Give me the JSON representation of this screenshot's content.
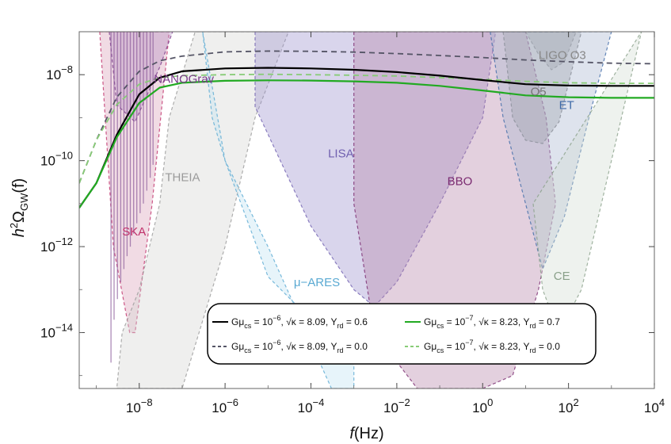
{
  "chart_data": {
    "type": "line",
    "xlabel": "f (Hz)",
    "ylabel": "h²Ω_GW(f)",
    "xscale": "log",
    "yscale": "log",
    "xlim": [
      4e-10,
      10000
    ],
    "ylim": [
      5e-16,
      1e-07
    ],
    "x_ticks": [
      {
        "value": 1e-08,
        "base": "10",
        "exp": "−8"
      },
      {
        "value": 1e-06,
        "base": "10",
        "exp": "−6"
      },
      {
        "value": 0.0001,
        "base": "10",
        "exp": "−4"
      },
      {
        "value": 0.01,
        "base": "10",
        "exp": "−2"
      },
      {
        "value": 1,
        "base": "10",
        "exp": "0"
      },
      {
        "value": 100,
        "base": "10",
        "exp": "2"
      },
      {
        "value": 10000,
        "base": "10",
        "exp": "4"
      }
    ],
    "y_ticks": [
      {
        "value": 1e-08,
        "base": "10",
        "exp": "−8"
      },
      {
        "value": 1e-10,
        "base": "10",
        "exp": "−10"
      },
      {
        "value": 1e-12,
        "base": "10",
        "exp": "−12"
      },
      {
        "value": 1e-14,
        "base": "10",
        "exp": "−14"
      }
    ],
    "regions": [
      {
        "label": "SKA",
        "color": "#c0306a",
        "fill": "#d9a0b8",
        "label_at": [
          4e-09,
          1.8e-12
        ],
        "boundary": [
          [
            1.2e-09,
            1e-07
          ],
          [
            2.5e-09,
            1e-12
          ],
          [
            6e-09,
            1e-14
          ],
          [
            8e-09,
            1e-14
          ],
          [
            2e-08,
            1e-11
          ],
          [
            5e-08,
            1e-07
          ]
        ]
      },
      {
        "label": "NANOGrav",
        "color": "#7a3a8a",
        "fill": "#b48cc0",
        "label_at": [
          2.2e-08,
          6.5e-09
        ],
        "boundary": [
          [
            2e-09,
            1e-07
          ],
          [
            3e-09,
            2e-09
          ],
          [
            8e-09,
            8e-10
          ],
          [
            3e-08,
            1.5e-08
          ],
          [
            6e-08,
            1e-07
          ]
        ]
      },
      {
        "label": "THEIA",
        "color": "#9a9a9a",
        "fill": "#d6d4d2",
        "label_at": [
          4e-08,
          3.3e-11
        ],
        "boundary": [
          [
            3e-09,
            5e-16
          ],
          [
            1e-07,
            5e-16
          ],
          [
            1e-06,
            1e-12
          ],
          [
            5e-06,
            1e-09
          ],
          [
            3e-05,
            1e-07
          ],
          [
            2e-07,
            1e-07
          ],
          [
            5e-08,
            1e-09
          ],
          [
            3e-08,
            1e-11
          ],
          [
            1e-08,
            1e-13
          ],
          [
            4e-09,
            1e-14
          ]
        ]
      },
      {
        "label": "μ−ARES",
        "color": "#59a9d2",
        "fill": "#bfe1f1",
        "label_at": [
          4e-05,
          1.2e-13
        ],
        "boundary": [
          [
            3e-07,
            1e-07
          ],
          [
            1e-06,
            1e-10
          ],
          [
            1e-05,
            2e-13
          ],
          [
            0.0001,
            2e-14
          ],
          [
            0.001,
            1e-14
          ],
          [
            0.001,
            5e-16
          ],
          [
            0.0003,
            5e-16
          ],
          [
            1e-05,
            1e-12
          ],
          [
            1e-06,
            1e-10
          ],
          [
            5e-07,
            1e-09
          ]
        ]
      },
      {
        "label": "LISA",
        "color": "#7060b0",
        "fill": "#9c91cc",
        "label_at": [
          0.00025,
          1.2e-10
        ],
        "boundary": [
          [
            5e-06,
            1e-07
          ],
          [
            5e-06,
            1.8e-09
          ],
          [
            0.0001,
            3e-12
          ],
          [
            0.001,
            1e-13
          ],
          [
            0.003,
            4e-14
          ],
          [
            0.01,
            1.5e-13
          ],
          [
            0.1,
            1e-11
          ],
          [
            1,
            1e-09
          ],
          [
            2,
            1e-07
          ]
        ]
      },
      {
        "label": "BBO",
        "color": "#7a2a70",
        "fill": "#b583a8",
        "label_at": [
          0.15,
          2.7e-11
        ],
        "boundary": [
          [
            0.001,
            1e-07
          ],
          [
            0.001,
            1e-11
          ],
          [
            0.003,
            1e-14
          ],
          [
            0.03,
            5e-16
          ],
          [
            1,
            5e-16
          ],
          [
            5,
            1e-15
          ],
          [
            20,
            1e-13
          ],
          [
            50,
            1e-11
          ],
          [
            30,
            1e-09
          ],
          [
            10,
            1e-07
          ]
        ]
      },
      {
        "label": "LIGO O3",
        "color": "#888888",
        "fill": "#a9a9a9",
        "label_at": [
          20,
          2.3e-08
        ],
        "boundary": [
          [
            10,
            1e-07
          ],
          [
            20,
            3e-08
          ],
          [
            40,
            1.3e-08
          ],
          [
            80,
            2e-08
          ],
          [
            150,
            1e-07
          ]
        ]
      },
      {
        "label": "O5",
        "color": "#777777",
        "fill": "#9c9c9c",
        "label_at": [
          13,
          3.3e-09
        ],
        "boundary": [
          [
            3,
            1e-07
          ],
          [
            5,
            1e-09
          ],
          [
            10,
            3e-10
          ],
          [
            25,
            2.5e-10
          ],
          [
            60,
            8e-10
          ],
          [
            200,
            1e-07
          ]
        ]
      },
      {
        "label": "ET",
        "color": "#3f6aa8",
        "fill": "#a8b6d0",
        "label_at": [
          60,
          1.6e-09
        ],
        "boundary": [
          [
            1.5,
            1e-07
          ],
          [
            3,
            1e-09
          ],
          [
            10,
            1e-11
          ],
          [
            25,
            3e-13
          ],
          [
            80,
            5e-12
          ],
          [
            300,
            1e-09
          ],
          [
            1000,
            1e-07
          ]
        ]
      },
      {
        "label": "CE",
        "color": "#8aa08a",
        "fill": "#d2dcd2",
        "label_at": [
          45,
          1.7e-13
        ],
        "boundary": [
          [
            15,
            1e-11
          ],
          [
            25,
            1e-13
          ],
          [
            60,
            1e-14
          ],
          [
            200,
            1e-13
          ],
          [
            1000,
            1e-10
          ],
          [
            5000,
            1e-07
          ]
        ]
      }
    ],
    "series": [
      {
        "name": "Gμ_cs = 10⁻⁶, √κ = 8.09, Y_rd = 0.6",
        "color": "#000000",
        "dash": false,
        "x": [
          4e-10,
          1e-09,
          3e-09,
          1e-08,
          3e-08,
          1e-07,
          1e-06,
          1e-05,
          0.0001,
          0.001,
          0.01,
          0.1,
          1,
          10,
          100,
          1000,
          10000
        ],
        "y": [
          8e-12,
          3e-11,
          4e-10,
          3.5e-09,
          8.5e-09,
          1.2e-08,
          1.4e-08,
          1.45e-08,
          1.4e-08,
          1.3e-08,
          1.15e-08,
          9.5e-09,
          7.5e-09,
          6e-09,
          5.6e-09,
          5.5e-09,
          5.5e-09
        ]
      },
      {
        "name": "Gμ_cs = 10⁻⁷, √κ = 8.23, Y_rd = 0.7",
        "color": "#22aa22",
        "dash": false,
        "x": [
          4e-10,
          1e-09,
          3e-09,
          1e-08,
          3e-08,
          1e-07,
          1e-06,
          1e-05,
          0.0001,
          0.001,
          0.01,
          0.1,
          1,
          10,
          100,
          1000,
          10000
        ],
        "y": [
          8e-12,
          3e-11,
          3.5e-10,
          2.2e-09,
          5e-09,
          6.5e-09,
          7.2e-09,
          7.4e-09,
          7.3e-09,
          7e-09,
          6.5e-09,
          5.5e-09,
          4.3e-09,
          3.3e-09,
          3e-09,
          2.9e-09,
          2.9e-09
        ]
      },
      {
        "name": "Gμ_cs = 10⁻⁶, √κ = 8.09, Y_rd = 0.0",
        "color": "#555566",
        "dash": true,
        "x": [
          4e-10,
          1e-09,
          3e-09,
          1e-08,
          3e-08,
          1e-07,
          1e-06,
          1e-05,
          0.0001,
          0.001,
          0.01,
          0.1,
          1,
          10,
          100,
          1000,
          10000
        ],
        "y": [
          3e-11,
          3e-10,
          3e-09,
          1.2e-08,
          2.1e-08,
          2.7e-08,
          3.4e-08,
          3.55e-08,
          3.5e-08,
          3.35e-08,
          3.1e-08,
          2.8e-08,
          2.5e-08,
          2.2e-08,
          2e-08,
          1.85e-08,
          1.8e-08
        ]
      },
      {
        "name": "Gμ_cs = 10⁻⁷, √κ = 8.23, Y_rd = 0.0",
        "color": "#88cc77",
        "dash": true,
        "x": [
          4e-10,
          1e-09,
          3e-09,
          1e-08,
          3e-08,
          1e-07,
          1e-06,
          1e-05,
          0.0001,
          0.001,
          0.01,
          0.1,
          1,
          10,
          100,
          1000,
          10000
        ],
        "y": [
          3e-11,
          3e-10,
          2e-09,
          6e-09,
          8.5e-09,
          9.5e-09,
          1e-08,
          1.02e-08,
          1e-08,
          9.7e-09,
          9.3e-09,
          8.6e-09,
          7.8e-09,
          7e-09,
          6.5e-09,
          6.3e-09,
          6.3e-09
        ]
      }
    ],
    "nanograv_spikes": [
      {
        "f": 2.2e-09,
        "y_low": 2e-15
      },
      {
        "f": 2.6e-09,
        "y_low": 2e-14
      },
      {
        "f": 3.1e-09,
        "y_low": 6e-14
      },
      {
        "f": 3.7e-09,
        "y_low": 1.5e-13
      },
      {
        "f": 4.4e-09,
        "y_low": 3e-13
      },
      {
        "f": 5.2e-09,
        "y_low": 6e-13
      },
      {
        "f": 6.2e-09,
        "y_low": 1e-12
      },
      {
        "f": 7.4e-09,
        "y_low": 2e-12
      },
      {
        "f": 8.8e-09,
        "y_low": 3.5e-12
      },
      {
        "f": 1.05e-08,
        "y_low": 6e-12
      },
      {
        "f": 1.25e-08,
        "y_low": 1e-11
      },
      {
        "f": 1.5e-08,
        "y_low": 2e-11
      },
      {
        "f": 1.8e-08,
        "y_low": 4e-11
      },
      {
        "f": 2.1e-08,
        "y_low": 8e-11
      }
    ],
    "legend": {
      "placement": "bottom-center",
      "rows": [
        [
          {
            "series": 0,
            "g": "Gμ",
            "sub": "cs",
            "gval": " = 10",
            "gexp": "−6",
            "kval": " = 8.09,",
            "yname": "Y",
            "ysub": "rd",
            "yval": " = 0.6"
          },
          {
            "series": 1,
            "g": "Gμ",
            "sub": "cs",
            "gval": " = 10",
            "gexp": "−7",
            "kval": " = 8.23,",
            "yname": "Y",
            "ysub": "rd",
            "yval": " = 0.7"
          }
        ],
        [
          {
            "series": 2,
            "g": "Gμ",
            "sub": "cs",
            "gval": " = 10",
            "gexp": "−6",
            "kval": " = 8.09,",
            "yname": "Y",
            "ysub": "rd",
            "yval": " = 0.0"
          },
          {
            "series": 3,
            "g": "Gμ",
            "sub": "cs",
            "gval": " = 10",
            "gexp": "−7",
            "kval": " = 8.23,",
            "yname": "Y",
            "ysub": "rd",
            "yval": " = 0.0"
          }
        ]
      ]
    }
  }
}
